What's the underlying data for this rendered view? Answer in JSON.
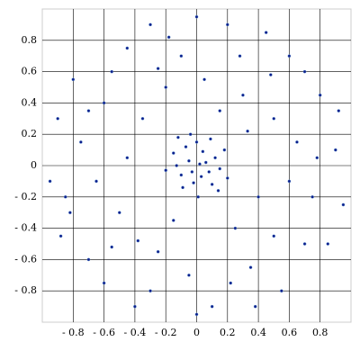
{
  "chart_data": {
    "type": "scatter",
    "color": "#0d1b8a",
    "grid": true,
    "xlim": [
      -1,
      1
    ],
    "ylim": [
      -1,
      1
    ],
    "xticks": [
      {
        "value": -0.8,
        "label": "- 0.8"
      },
      {
        "value": -0.6,
        "label": "- 0.6"
      },
      {
        "value": -0.4,
        "label": "- 0.4"
      },
      {
        "value": -0.2,
        "label": "- 0.2"
      },
      0,
      0.2,
      0.4,
      0.6,
      0.8
    ],
    "yticks": [
      {
        "value": -0.8,
        "label": "- 0.8"
      },
      {
        "value": -0.6,
        "label": "- 0.6"
      },
      {
        "value": -0.4,
        "label": "- 0.4"
      },
      {
        "value": -0.2,
        "label": "- 0.2"
      },
      0,
      0.2,
      0.4,
      0.6,
      0.8
    ],
    "x": [
      0.02,
      -0.05,
      0.08,
      -0.1,
      0.04,
      -0.02,
      0.12,
      -0.07,
      0.1,
      -0.13,
      0.0,
      0.06,
      -0.03,
      0.15,
      -0.09,
      0.03,
      -0.15,
      0.18,
      -0.04,
      0.09,
      0.2,
      -0.2,
      0.01,
      -0.12,
      0.14,
      0.5,
      -0.6,
      0.7,
      -0.3,
      0.2,
      -0.85,
      0.9,
      -0.45,
      0.35,
      -0.7,
      0.6,
      -0.2,
      0.4,
      -0.5,
      0.8,
      -0.9,
      0.1,
      -0.1,
      0.55,
      -0.35,
      0.3,
      -0.65,
      0.75,
      -0.25,
      0.05,
      -0.8,
      0.95,
      -0.55,
      0.25,
      -0.4,
      0.45,
      -0.95,
      0.65,
      -0.15,
      0.85,
      -0.75,
      0.15,
      -0.3,
      0.38,
      -0.6,
      0.7,
      -0.45,
      0.5,
      -0.05,
      0.92,
      -0.88,
      0.28,
      -0.25,
      0.6,
      -0.7,
      0.0,
      0.0,
      -0.38,
      0.33,
      -0.55,
      0.78,
      -0.18,
      0.48,
      -0.82,
      0.22
    ],
    "values": [
      0.01,
      0.03,
      -0.04,
      -0.06,
      0.09,
      -0.11,
      0.05,
      0.12,
      -0.12,
      0.0,
      0.15,
      0.02,
      -0.04,
      -0.02,
      -0.14,
      -0.07,
      0.08,
      0.1,
      0.2,
      0.17,
      -0.08,
      -0.03,
      -0.2,
      0.18,
      -0.16,
      0.3,
      0.4,
      -0.5,
      -0.8,
      0.9,
      -0.2,
      0.1,
      0.75,
      -0.65,
      -0.6,
      0.7,
      0.5,
      -0.2,
      -0.3,
      0.45,
      0.3,
      -0.9,
      0.7,
      -0.8,
      0.3,
      0.45,
      -0.1,
      -0.2,
      -0.55,
      0.55,
      0.55,
      -0.25,
      0.6,
      -0.4,
      -0.9,
      0.85,
      -0.1,
      0.15,
      -0.35,
      -0.5,
      0.15,
      0.35,
      0.9,
      -0.9,
      -0.75,
      0.6,
      0.05,
      -0.45,
      -0.7,
      0.35,
      -0.45,
      0.7,
      0.62,
      -0.1,
      0.35,
      0.95,
      -0.95,
      -0.48,
      0.22,
      -0.52,
      0.05,
      0.82,
      0.58,
      -0.3,
      -0.75
    ]
  }
}
